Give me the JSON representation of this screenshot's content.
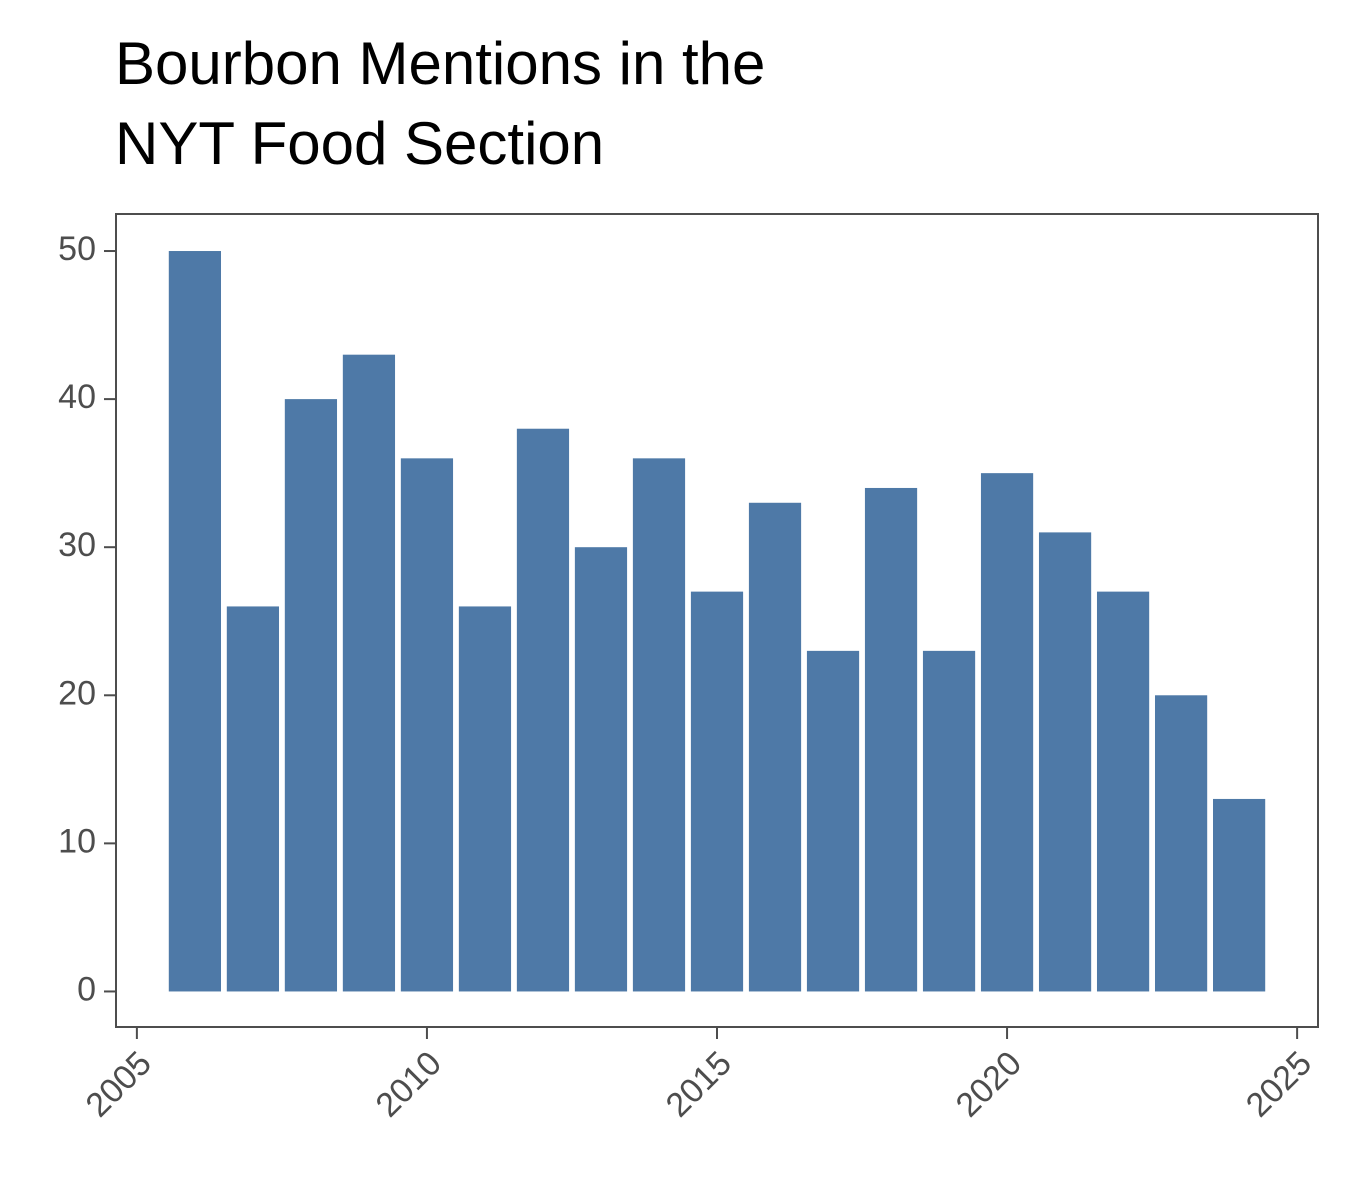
{
  "chart_data": {
    "type": "bar",
    "title": [
      "Bourbon Mentions in the",
      "NYT Food Section"
    ],
    "x": [
      2006,
      2007,
      2008,
      2009,
      2010,
      2011,
      2012,
      2013,
      2014,
      2015,
      2016,
      2017,
      2018,
      2019,
      2020,
      2021,
      2022,
      2023,
      2024
    ],
    "values": [
      50,
      26,
      40,
      43,
      36,
      26,
      38,
      30,
      36,
      27,
      33,
      23,
      34,
      23,
      35,
      31,
      27,
      20,
      13
    ],
    "color": "#4e79a7",
    "xlim": [
      2004.64,
      2025.36
    ],
    "xticks": [
      2005,
      2010,
      2015,
      2020,
      2025
    ],
    "ylim": [
      -2.4,
      52.5
    ],
    "yticks": [
      0,
      10,
      20,
      30,
      40,
      50
    ],
    "grid": false
  }
}
